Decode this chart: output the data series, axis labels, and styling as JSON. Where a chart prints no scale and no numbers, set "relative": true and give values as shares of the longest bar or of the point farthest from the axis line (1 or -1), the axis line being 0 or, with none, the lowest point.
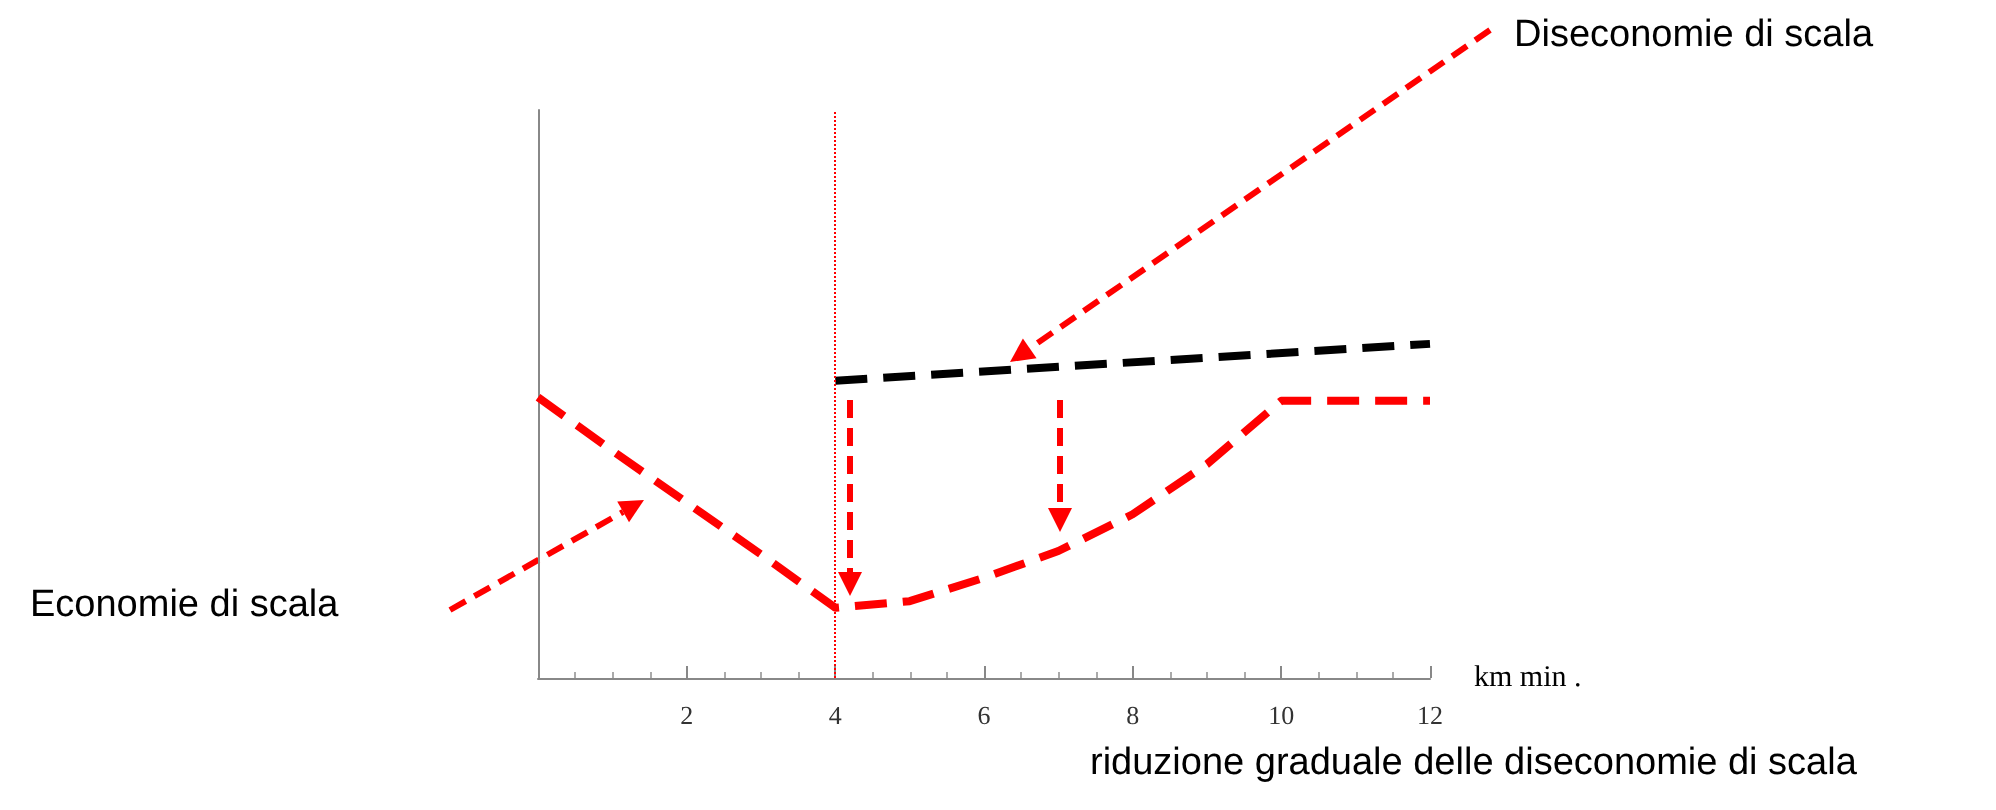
{
  "chart_data": {
    "type": "line",
    "relative": true,
    "xlabel": "km min .",
    "xlim": [
      0,
      12
    ],
    "xticks": [
      {
        "value": 0,
        "label": null
      },
      2,
      4,
      6,
      8,
      10,
      12
    ],
    "series": [
      {
        "color": "#ff0000",
        "x": [
          0,
          1,
          2,
          3,
          4,
          5,
          6,
          7,
          8,
          9,
          10,
          11,
          12
        ],
        "values": [
          0.84,
          0.68,
          0.525,
          0.37,
          0.21,
          0.23,
          0.3,
          0.38,
          0.49,
          0.64,
          0.83,
          0.83,
          0.83
        ]
      },
      {
        "color": "#000000",
        "x": [
          4,
          12
        ],
        "values": [
          0.89,
          1
        ]
      }
    ],
    "ref_lines": [
      {
        "axis": "x",
        "value": 4,
        "color": "#ff0000",
        "line_style": "dotted"
      }
    ],
    "annotations": [
      "Diseconomie di scala",
      "Economie di scala",
      "riduzione graduale delle diseconomie di scala"
    ],
    "marker": "none",
    "line_style": "dashed",
    "grid": false
  }
}
